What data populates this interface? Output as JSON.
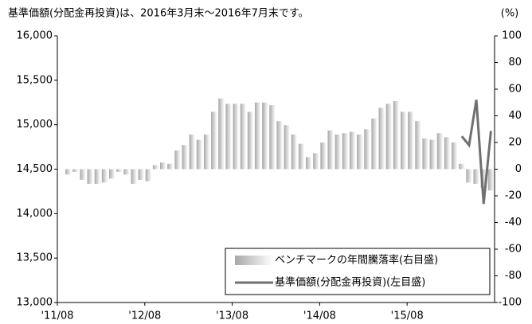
{
  "chart_data": {
    "type": "bar-line",
    "title": "基準価額(分配金再投資)は、2016年3月末～2016年7月末です。",
    "y2_unit": "(%)",
    "categories": [
      "'11/08",
      null,
      null,
      null,
      null,
      null,
      null,
      null,
      null,
      null,
      null,
      null,
      "'12/08",
      null,
      null,
      null,
      null,
      null,
      null,
      null,
      null,
      null,
      null,
      null,
      "'13/08",
      null,
      null,
      null,
      null,
      null,
      null,
      null,
      null,
      null,
      null,
      null,
      "'14/08",
      null,
      null,
      null,
      null,
      null,
      null,
      null,
      null,
      null,
      null,
      null,
      "'15/08",
      null,
      null,
      null,
      null,
      null,
      null,
      null,
      null,
      null,
      null,
      null
    ],
    "series": [
      {
        "name": "ベンチマークの年間騰落率(右目盛)",
        "type": "bar",
        "axis": "y2",
        "color": "#b8b8b8",
        "values": [
          0,
          -4,
          -2,
          -8,
          -11,
          -11,
          -10,
          -7,
          -2,
          -4,
          -11,
          -8,
          -9,
          3,
          5,
          4,
          14,
          18,
          26,
          22,
          26,
          43,
          53,
          49,
          49,
          49,
          43,
          50,
          50,
          48,
          36,
          33,
          26,
          19,
          9,
          12,
          20,
          29,
          26,
          27,
          28,
          26,
          30,
          38,
          46,
          49,
          51,
          43,
          43,
          36,
          23,
          22,
          27,
          24,
          20,
          4,
          -10,
          -11,
          -14,
          -16
        ]
      },
      {
        "name": "基準価額(分配金再投資)(左目盛)",
        "type": "line",
        "color": "#707070",
        "values": [
          null,
          null,
          null,
          null,
          null,
          null,
          null,
          null,
          null,
          null,
          null,
          null,
          null,
          null,
          null,
          null,
          null,
          null,
          null,
          null,
          null,
          null,
          null,
          null,
          null,
          null,
          null,
          null,
          null,
          null,
          null,
          null,
          null,
          null,
          null,
          null,
          null,
          null,
          null,
          null,
          null,
          null,
          null,
          null,
          null,
          null,
          null,
          null,
          null,
          null,
          null,
          null,
          null,
          null,
          null,
          14870,
          14770,
          15280,
          14110,
          14930
        ]
      }
    ],
    "ylim": [
      13000,
      16000
    ],
    "yticks": [
      {
        "value": 13000,
        "label": "13,000"
      },
      {
        "value": 13500,
        "label": "13,500"
      },
      {
        "value": 14000,
        "label": "14,000"
      },
      {
        "value": 14500,
        "label": "14,500"
      },
      {
        "value": 15000,
        "label": "15,000"
      },
      {
        "value": 15500,
        "label": "15,500"
      },
      {
        "value": 16000,
        "label": "16,000"
      }
    ],
    "y2lim": [
      -100,
      100
    ],
    "y2ticks": [
      -100,
      -80,
      -60,
      -40,
      -20,
      0,
      20,
      40,
      60,
      80,
      100
    ],
    "legend": "lower right"
  }
}
